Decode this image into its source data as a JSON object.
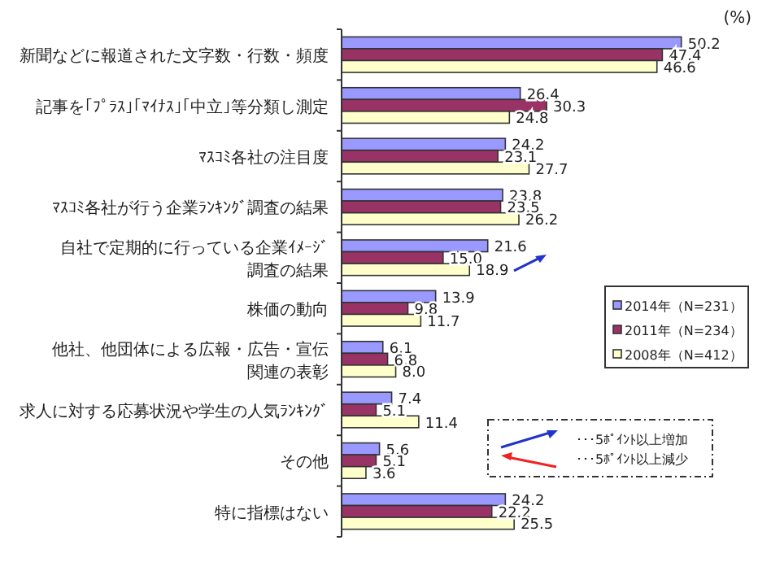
{
  "chart_data": {
    "type": "bar",
    "orientation": "horizontal",
    "categories": [
      "新聞などに報道された文字数・行数・頻度",
      "記事を｢ﾌﾟﾗｽ｣｢ﾏｲﾅｽ｣｢中立｣等分類し測定",
      "ﾏｽｺﾐ各社の注目度",
      "ﾏｽｺﾐ各社が行う企業ﾗﾝｷﾝｸﾞ調査の結果",
      "自社で定期的に行っている企業ｲﾒｰｼﾞ調査の結果",
      "株価の動向",
      "他社、他団体による広報・広告・宣伝関連の表彰",
      "求人に対する応募状況や学生の人気ﾗﾝｷﾝｸﾞ",
      "その他",
      "特に指標はない"
    ],
    "series": [
      {
        "name": "2014年（N=231）",
        "color": "#9999ff",
        "values": [
          50.2,
          26.4,
          24.2,
          23.8,
          21.6,
          13.9,
          6.1,
          7.4,
          5.6,
          24.2
        ],
        "value_labels": [
          "50.2",
          "26.4",
          "24.2",
          "23.8",
          "21.6",
          "13.9",
          "6.1",
          "7.4",
          "5.6",
          "24.2"
        ]
      },
      {
        "name": "2011年（N=234）",
        "color": "#993366",
        "values": [
          47.4,
          30.3,
          23.1,
          23.5,
          15.0,
          9.8,
          6.8,
          5.1,
          5.1,
          22.2
        ],
        "value_labels": [
          "47.4",
          "30.3",
          "23.1",
          "23.5",
          "15.0",
          "9.8",
          "6.8",
          "5.1",
          "5.1",
          "22.2"
        ]
      },
      {
        "name": "2008年（N=412）",
        "color": "#ffffcc",
        "values": [
          46.6,
          24.8,
          27.7,
          26.2,
          18.9,
          11.7,
          8.0,
          11.4,
          3.6,
          25.5
        ],
        "value_labels": [
          "46.6",
          "24.8",
          "27.7",
          "26.2",
          "18.9",
          "11.7",
          "8.0",
          "11.4",
          "3.6",
          "25.5"
        ]
      }
    ],
    "legend": "right",
    "annotations": [
      "(%)",
      "･･･5ﾎﾟｲﾝﾄ以上増加",
      "･･･5ﾎﾟｲﾝﾄ以上減少"
    ]
  }
}
